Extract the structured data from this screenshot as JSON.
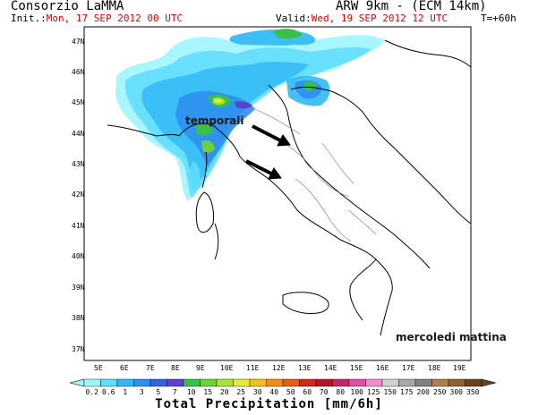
{
  "header": {
    "org": "Consorzio LaMMA",
    "model": "ARW 9km - (ECM 14km)",
    "init_label": "Init.:",
    "init_value": "Mon, 17 SEP 2012 00 UTC",
    "valid_label": "Valid:",
    "valid_value": "Wed, 19 SEP 2012 12 UTC",
    "lead": "T=+60h"
  },
  "axes": {
    "lat_ticks": [
      "47N",
      "46N",
      "45N",
      "44N",
      "43N",
      "42N",
      "41N",
      "40N",
      "39N",
      "38N",
      "37N"
    ],
    "lon_ticks": [
      "5E",
      "6E",
      "7E",
      "8E",
      "9E",
      "10E",
      "11E",
      "12E",
      "13E",
      "14E",
      "15E",
      "16E",
      "17E",
      "18E",
      "19E"
    ]
  },
  "annotations": {
    "storms": "temporali",
    "day": "mercoledi mattina"
  },
  "colorbar": {
    "labels": [
      "0.2",
      "0.6",
      "1",
      "3",
      "5",
      "7",
      "10",
      "15",
      "20",
      "25",
      "30",
      "40",
      "50",
      "60",
      "70",
      "80",
      "100",
      "125",
      "150",
      "175",
      "200",
      "250",
      "300",
      "350"
    ],
    "colors": [
      "#9ef5ff",
      "#5fdcff",
      "#31b9f5",
      "#2f8ef0",
      "#3a5fe0",
      "#5c44c8",
      "#39c04a",
      "#6cd23c",
      "#a8e43a",
      "#e8ec34",
      "#f2c21c",
      "#ee8f18",
      "#e85a16",
      "#d42818",
      "#b01828",
      "#c0286a",
      "#e050a8",
      "#f08cd0",
      "#d0d0d0",
      "#a8a8a8",
      "#808080",
      "#b08048",
      "#906030",
      "#6a4420"
    ],
    "title": "Total Precipitation [mm/6h]"
  }
}
